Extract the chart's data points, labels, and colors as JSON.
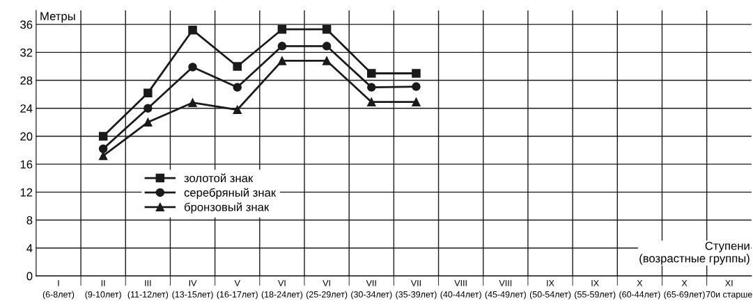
{
  "chart_data": {
    "type": "line",
    "ylabel": "Метры",
    "xlabel": "Ступени\n(возрастные группы)",
    "categories": [
      "I\n(6-8лет)",
      "II\n(9-10лет)",
      "III\n(11-12лет)",
      "IV\n(13-15лет)",
      "V\n(16-17лет)",
      "VI\n(18-24лет)",
      "VI\n(25-29лет)",
      "VII\n(30-34лет)",
      "VII\n(35-39лет)",
      "VIII\n(40-44лет)",
      "VIII\n(45-49лет)",
      "IX\n(50-54лет)",
      "IX\n(55-59лет)",
      "X\n(60-44лет)",
      "X\n(65-69лет)",
      "XI\n70и старше"
    ],
    "series": [
      {
        "name": "золотой знак",
        "color": "#1a1a1a",
        "marker": "square",
        "values": [
          null,
          20,
          26.2,
          35.2,
          30,
          35.3,
          35.3,
          29,
          29,
          null,
          null,
          null,
          null,
          null,
          null,
          null
        ]
      },
      {
        "name": "серебряный знак",
        "color": "#1a1a1a",
        "marker": "circle",
        "values": [
          null,
          18.2,
          24,
          29.9,
          27,
          32.9,
          32.9,
          27,
          27.1,
          null,
          null,
          null,
          null,
          null,
          null,
          null
        ]
      },
      {
        "name": "бронзовый знак",
        "color": "#1a1a1a",
        "marker": "triangle",
        "values": [
          null,
          17.2,
          22,
          24.8,
          23.8,
          30.8,
          30.8,
          24.9,
          24.9,
          null,
          null,
          null,
          null,
          null,
          null,
          null
        ]
      }
    ],
    "ylim": [
      0,
      38
    ],
    "yticks": [
      0,
      4,
      8,
      12,
      16,
      20,
      24,
      28,
      32,
      36
    ],
    "grid": true,
    "legend": "center left",
    "line_style": "solid"
  }
}
